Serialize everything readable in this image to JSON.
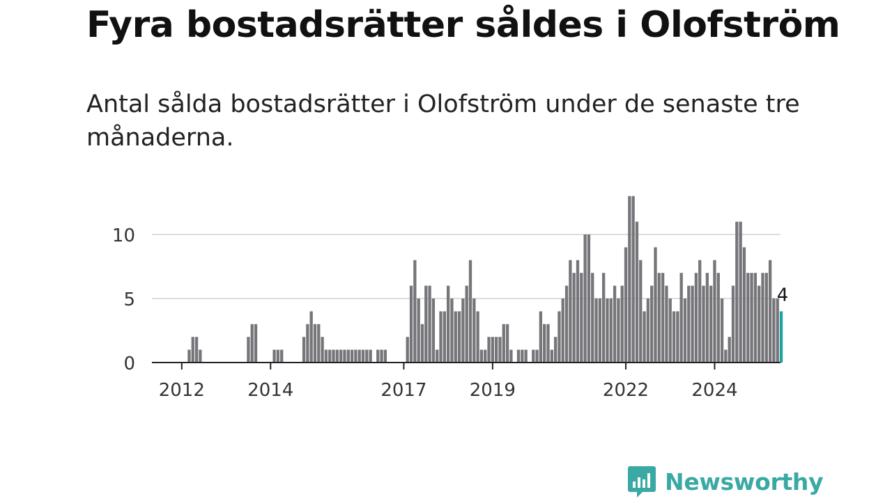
{
  "title": "Fyra bostadsrätter såldes i Olofström",
  "subtitle": "Antal sålda bostadsrätter i Olofström under de senaste tre månaderna.",
  "brand": {
    "name": "Newsworthy",
    "icon": "newsworthy-logo-icon",
    "color": "#3aa9a4"
  },
  "chart_data": {
    "type": "bar",
    "title": "",
    "xlabel": "",
    "ylabel": "",
    "ylim": [
      0,
      13
    ],
    "yticks": [
      0,
      5,
      10
    ],
    "xticks": [
      "2012",
      "2014",
      "2017",
      "2019",
      "2022",
      "2024"
    ],
    "grid": true,
    "colors": {
      "bar": "#75757a",
      "highlight": "#1aa39f",
      "grid": "#dddddd",
      "axis": "#222222"
    },
    "highlight_label": "4",
    "start": "2011-06",
    "frequency": "monthly",
    "values": [
      0,
      0,
      0,
      0,
      0,
      0,
      0,
      0,
      0,
      1,
      2,
      2,
      1,
      0,
      0,
      0,
      0,
      0,
      0,
      0,
      0,
      0,
      0,
      0,
      0,
      2,
      3,
      3,
      0,
      0,
      0,
      0,
      1,
      1,
      1,
      0,
      0,
      0,
      0,
      0,
      2,
      3,
      4,
      3,
      3,
      2,
      1,
      1,
      1,
      1,
      1,
      1,
      1,
      1,
      1,
      1,
      1,
      1,
      1,
      0,
      1,
      1,
      1,
      0,
      0,
      0,
      0,
      0,
      2,
      6,
      8,
      5,
      3,
      6,
      6,
      5,
      1,
      4,
      4,
      6,
      5,
      4,
      4,
      5,
      6,
      8,
      5,
      4,
      1,
      1,
      2,
      2,
      2,
      2,
      3,
      3,
      1,
      0,
      1,
      1,
      1,
      0,
      1,
      1,
      4,
      3,
      3,
      1,
      2,
      4,
      5,
      6,
      8,
      7,
      8,
      7,
      10,
      10,
      7,
      5,
      5,
      7,
      5,
      5,
      6,
      5,
      6,
      9,
      13,
      13,
      11,
      8,
      4,
      5,
      6,
      9,
      7,
      7,
      6,
      5,
      4,
      4,
      7,
      5,
      6,
      6,
      7,
      8,
      6,
      7,
      6,
      8,
      7,
      5,
      1,
      2,
      6,
      11,
      11,
      9,
      7,
      7,
      7,
      6,
      7,
      7,
      8,
      5,
      5,
      4
    ]
  }
}
